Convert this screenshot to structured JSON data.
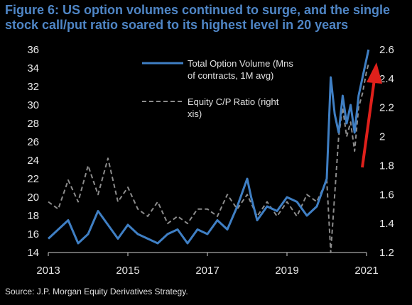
{
  "title": "Figure 6: US option volumes continued to surge, and the single stock call/put ratio soared to its highest level in 20 years",
  "source": "Source: J.P. Morgan Equity Derivatives Strategy.",
  "colors": {
    "background": "#000000",
    "title": "#4f86c6",
    "volume_line": "#3f7fc4",
    "ratio_line": "#8c8c8c",
    "arrow": "#e0201b"
  },
  "annotation": "red-arrow",
  "chart_data": {
    "type": "line",
    "x_label": "",
    "x_ticks": [
      "2013",
      "2015",
      "2017",
      "2019",
      "2021"
    ],
    "x_range": [
      2013,
      2021
    ],
    "y_left": {
      "ticks": [
        "14",
        "16",
        "18",
        "20",
        "22",
        "24",
        "26",
        "28",
        "30",
        "32",
        "34",
        "36"
      ],
      "range": [
        14,
        36
      ]
    },
    "y_right": {
      "ticks": [
        "1.2",
        "1.4",
        "1.6",
        "1.8",
        "2",
        "2.2",
        "2.4",
        "2.6"
      ],
      "range": [
        1.2,
        2.6
      ]
    },
    "grid": false,
    "legend_position": "top-center",
    "series": [
      {
        "name": "Total Option Volume (Mns of contracts, 1M avg)",
        "axis": "left",
        "style": "solid",
        "x": [
          2013.0,
          2013.25,
          2013.5,
          2013.75,
          2014.0,
          2014.25,
          2014.5,
          2014.75,
          2015.0,
          2015.25,
          2015.5,
          2015.75,
          2016.0,
          2016.25,
          2016.5,
          2016.75,
          2017.0,
          2017.25,
          2017.5,
          2017.75,
          2018.0,
          2018.1,
          2018.25,
          2018.5,
          2018.75,
          2019.0,
          2019.25,
          2019.5,
          2019.75,
          2020.0,
          2020.1,
          2020.2,
          2020.3,
          2020.4,
          2020.5,
          2020.6,
          2020.7,
          2020.8,
          2020.9,
          2021.0,
          2021.05
        ],
        "y": [
          15.5,
          16.5,
          17.5,
          15.0,
          16.0,
          18.5,
          17.0,
          15.5,
          17.0,
          16.0,
          15.5,
          15.0,
          16.0,
          16.5,
          15.0,
          16.5,
          16.0,
          17.5,
          16.5,
          19.0,
          22.0,
          20.0,
          17.5,
          19.0,
          18.5,
          20.0,
          19.5,
          18.0,
          19.0,
          22.0,
          33.0,
          29.0,
          27.0,
          31.0,
          28.0,
          30.0,
          27.0,
          31.0,
          33.0,
          35.0,
          36.0
        ]
      },
      {
        "name": "Equity C/P Ratio (right axis)",
        "axis": "right",
        "style": "dashed",
        "x": [
          2013.0,
          2013.25,
          2013.5,
          2013.75,
          2014.0,
          2014.25,
          2014.5,
          2014.75,
          2015.0,
          2015.25,
          2015.5,
          2015.75,
          2016.0,
          2016.25,
          2016.5,
          2016.75,
          2017.0,
          2017.25,
          2017.5,
          2017.75,
          2018.0,
          2018.25,
          2018.5,
          2018.75,
          2019.0,
          2019.25,
          2019.5,
          2019.75,
          2020.0,
          2020.1,
          2020.2,
          2020.3,
          2020.4,
          2020.5,
          2020.6,
          2020.7,
          2020.8,
          2020.9,
          2021.0,
          2021.05
        ],
        "y": [
          1.55,
          1.5,
          1.7,
          1.55,
          1.8,
          1.6,
          1.85,
          1.55,
          1.65,
          1.5,
          1.45,
          1.55,
          1.4,
          1.45,
          1.4,
          1.5,
          1.5,
          1.45,
          1.6,
          1.5,
          1.6,
          1.45,
          1.55,
          1.45,
          1.55,
          1.45,
          1.6,
          1.55,
          1.7,
          1.2,
          1.6,
          2.0,
          2.2,
          2.0,
          2.1,
          1.9,
          2.2,
          2.3,
          2.45,
          2.5
        ]
      }
    ]
  }
}
